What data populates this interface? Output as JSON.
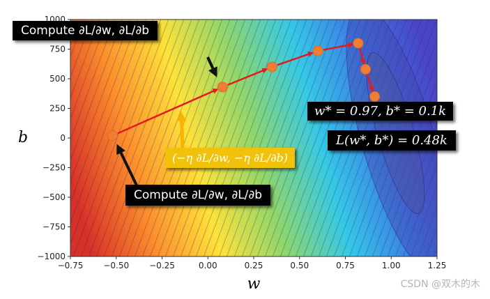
{
  "chart_data": {
    "type": "contour",
    "xlabel": "w",
    "ylabel": "b",
    "xlim": [
      -0.75,
      1.25
    ],
    "ylim": [
      -1000,
      1000
    ],
    "xticks": [
      "−0.75",
      "−0.50",
      "−0.25",
      "0.00",
      "0.25",
      "0.50",
      "0.75",
      "1.00",
      "1.25"
    ],
    "yticks": [
      "1000",
      "750",
      "500",
      "250",
      "0",
      "−250",
      "−500",
      "−750",
      "−1000"
    ],
    "xtick_values": [
      -0.75,
      -0.5,
      -0.25,
      0,
      0.25,
      0.5,
      0.75,
      1.0,
      1.25
    ],
    "ytick_values": [
      1000,
      750,
      500,
      250,
      0,
      -250,
      -500,
      -750,
      -1000
    ],
    "colormap": [
      "#d73027",
      "#fc8d2c",
      "#fee23a",
      "#8fd66b",
      "#35c9e6",
      "#3b7be6",
      "#4a44c8"
    ],
    "optimum": {
      "w": 0.97,
      "b": 100
    },
    "path": [
      {
        "w": -0.52,
        "b": 20
      },
      {
        "w": 0.08,
        "b": 430
      },
      {
        "w": 0.35,
        "b": 600
      },
      {
        "w": 0.6,
        "b": 735
      },
      {
        "w": 0.82,
        "b": 800
      },
      {
        "w": 0.86,
        "b": 580
      },
      {
        "w": 0.91,
        "b": 350
      }
    ],
    "point_color": "#f07d34",
    "path_color": "#e41a1c",
    "annotations": {
      "grad_top": "Compute ∂L/∂w, ∂L/∂b",
      "grad_bottom": "Compute ∂L/∂w, ∂L/∂b",
      "step": "(−η ∂L/∂w, −η ∂L/∂b)",
      "optimum": "w* = 0.97, b* = 0.1k",
      "loss": "L(w*, b*) = 0.48k"
    }
  },
  "watermark": "CSDN @双木的木"
}
